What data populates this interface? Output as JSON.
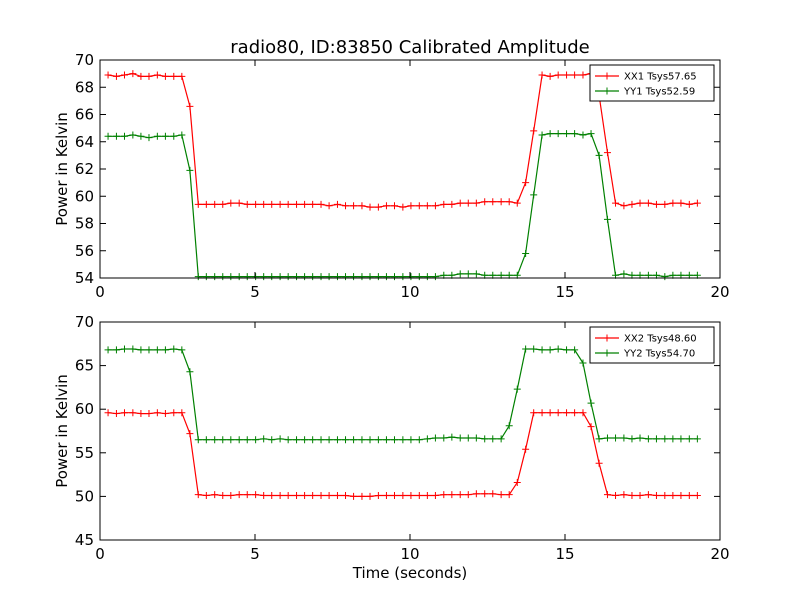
{
  "chart_data": [
    {
      "type": "line",
      "title": "radio80, ID:83850 Calibrated Amplitude",
      "xlabel": "",
      "ylabel": "Power in Kelvin",
      "xlim": [
        0,
        20
      ],
      "ylim": [
        54,
        70
      ],
      "xticks": [
        0,
        5,
        10,
        15,
        20
      ],
      "yticks": [
        54,
        56,
        58,
        60,
        62,
        64,
        66,
        68,
        70
      ],
      "legend": "top-right",
      "grid": false,
      "marker": "+",
      "x": [
        0.26,
        0.53,
        0.79,
        1.06,
        1.32,
        1.58,
        1.85,
        2.11,
        2.38,
        2.64,
        2.9,
        3.17,
        3.43,
        3.7,
        3.96,
        4.22,
        4.49,
        4.75,
        5.02,
        5.28,
        5.54,
        5.81,
        6.07,
        6.34,
        6.6,
        6.86,
        7.13,
        7.39,
        7.66,
        7.92,
        8.18,
        8.45,
        8.71,
        8.98,
        9.24,
        9.5,
        9.77,
        10.03,
        10.3,
        10.56,
        10.82,
        11.09,
        11.35,
        11.62,
        11.88,
        12.14,
        12.41,
        12.67,
        12.94,
        13.2,
        13.46,
        13.73,
        13.99,
        14.26,
        14.52,
        14.78,
        15.05,
        15.31,
        15.58,
        15.84,
        16.1,
        16.37,
        16.63,
        16.9,
        17.16,
        17.42,
        17.69,
        17.95,
        18.22,
        18.48,
        18.74,
        19.01,
        19.27
      ],
      "series": [
        {
          "name": "XX1 Tsys57.65",
          "color": "#ff0000",
          "values": [
            68.9,
            68.8,
            68.9,
            69.0,
            68.8,
            68.8,
            68.9,
            68.8,
            68.8,
            68.8,
            66.6,
            59.4,
            59.4,
            59.4,
            59.4,
            59.5,
            59.5,
            59.4,
            59.4,
            59.4,
            59.4,
            59.4,
            59.4,
            59.4,
            59.4,
            59.4,
            59.4,
            59.3,
            59.4,
            59.3,
            59.3,
            59.3,
            59.2,
            59.2,
            59.3,
            59.3,
            59.2,
            59.3,
            59.3,
            59.3,
            59.3,
            59.4,
            59.4,
            59.5,
            59.5,
            59.5,
            59.6,
            59.6,
            59.6,
            59.6,
            59.5,
            61.0,
            64.8,
            68.9,
            68.8,
            68.9,
            68.9,
            68.9,
            68.9,
            69.0,
            67.4,
            63.2,
            59.5,
            59.3,
            59.4,
            59.5,
            59.5,
            59.4,
            59.4,
            59.5,
            59.5,
            59.4,
            59.5
          ]
        },
        {
          "name": "YY1 Tsys52.59",
          "color": "#008000",
          "values": [
            64.4,
            64.4,
            64.4,
            64.5,
            64.4,
            64.3,
            64.4,
            64.4,
            64.4,
            64.5,
            61.9,
            54.1,
            54.1,
            54.1,
            54.1,
            54.1,
            54.1,
            54.1,
            54.1,
            54.1,
            54.1,
            54.1,
            54.1,
            54.1,
            54.1,
            54.1,
            54.1,
            54.1,
            54.1,
            54.1,
            54.1,
            54.1,
            54.1,
            54.1,
            54.1,
            54.1,
            54.1,
            54.1,
            54.1,
            54.1,
            54.1,
            54.2,
            54.2,
            54.3,
            54.3,
            54.3,
            54.2,
            54.2,
            54.2,
            54.2,
            54.2,
            55.8,
            60.1,
            64.5,
            64.6,
            64.6,
            64.6,
            64.6,
            64.5,
            64.6,
            63.0,
            58.3,
            54.2,
            54.3,
            54.2,
            54.2,
            54.2,
            54.2,
            54.1,
            54.2,
            54.2,
            54.2,
            54.2
          ]
        }
      ]
    },
    {
      "type": "line",
      "title": "",
      "xlabel": "Time (seconds)",
      "ylabel": "Power in Kelvin",
      "xlim": [
        0,
        20
      ],
      "ylim": [
        45,
        70
      ],
      "xticks": [
        0,
        5,
        10,
        15,
        20
      ],
      "yticks": [
        45,
        50,
        55,
        60,
        65,
        70
      ],
      "legend": "top-right",
      "grid": false,
      "marker": "+",
      "x": [
        0.26,
        0.53,
        0.79,
        1.06,
        1.32,
        1.58,
        1.85,
        2.11,
        2.38,
        2.64,
        2.9,
        3.17,
        3.43,
        3.7,
        3.96,
        4.22,
        4.49,
        4.75,
        5.02,
        5.28,
        5.54,
        5.81,
        6.07,
        6.34,
        6.6,
        6.86,
        7.13,
        7.39,
        7.66,
        7.92,
        8.18,
        8.45,
        8.71,
        8.98,
        9.24,
        9.5,
        9.77,
        10.03,
        10.3,
        10.56,
        10.82,
        11.09,
        11.35,
        11.62,
        11.88,
        12.14,
        12.41,
        12.67,
        12.94,
        13.2,
        13.46,
        13.73,
        13.99,
        14.26,
        14.52,
        14.78,
        15.05,
        15.31,
        15.58,
        15.84,
        16.1,
        16.37,
        16.63,
        16.9,
        17.16,
        17.42,
        17.69,
        17.95,
        18.22,
        18.48,
        18.74,
        19.01,
        19.27
      ],
      "series": [
        {
          "name": "XX2 Tsys48.60",
          "color": "#ff0000",
          "values": [
            59.6,
            59.5,
            59.6,
            59.6,
            59.5,
            59.5,
            59.6,
            59.5,
            59.6,
            59.6,
            57.2,
            50.2,
            50.1,
            50.2,
            50.1,
            50.1,
            50.2,
            50.2,
            50.2,
            50.1,
            50.1,
            50.1,
            50.1,
            50.1,
            50.1,
            50.1,
            50.1,
            50.1,
            50.1,
            50.1,
            50.0,
            50.0,
            50.0,
            50.1,
            50.1,
            50.1,
            50.1,
            50.1,
            50.1,
            50.1,
            50.1,
            50.2,
            50.2,
            50.2,
            50.2,
            50.3,
            50.3,
            50.3,
            50.2,
            50.2,
            51.6,
            55.4,
            59.6,
            59.6,
            59.6,
            59.6,
            59.6,
            59.6,
            59.6,
            58.0,
            53.8,
            50.2,
            50.1,
            50.2,
            50.1,
            50.1,
            50.2,
            50.1,
            50.1,
            50.1,
            50.1,
            50.1,
            50.1
          ]
        },
        {
          "name": "YY2 Tsys54.70",
          "color": "#008000",
          "values": [
            66.8,
            66.8,
            66.9,
            66.9,
            66.8,
            66.8,
            66.8,
            66.8,
            66.9,
            66.8,
            64.3,
            56.5,
            56.5,
            56.5,
            56.5,
            56.5,
            56.5,
            56.5,
            56.5,
            56.6,
            56.5,
            56.6,
            56.5,
            56.5,
            56.5,
            56.5,
            56.5,
            56.5,
            56.5,
            56.5,
            56.5,
            56.5,
            56.5,
            56.5,
            56.5,
            56.5,
            56.5,
            56.5,
            56.5,
            56.6,
            56.7,
            56.7,
            56.8,
            56.7,
            56.7,
            56.7,
            56.6,
            56.6,
            56.6,
            58.1,
            62.3,
            66.9,
            66.9,
            66.8,
            66.8,
            66.9,
            66.8,
            66.8,
            65.3,
            60.7,
            56.6,
            56.7,
            56.7,
            56.7,
            56.6,
            56.7,
            56.6,
            56.6,
            56.6,
            56.6,
            56.6,
            56.6,
            56.6
          ]
        }
      ]
    }
  ]
}
